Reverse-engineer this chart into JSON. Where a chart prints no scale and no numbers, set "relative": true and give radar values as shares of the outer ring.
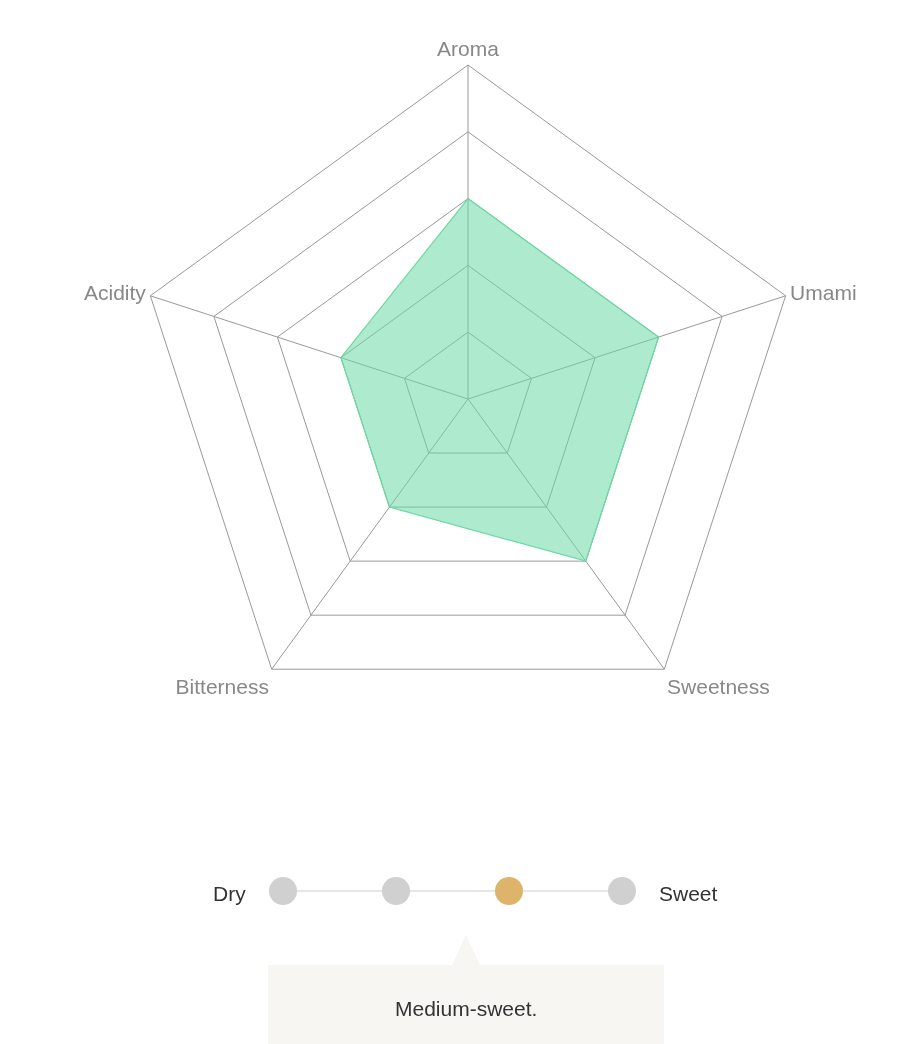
{
  "chart_data": [
    {
      "type": "radar",
      "relative": true,
      "grid": true,
      "categories": [
        "Aroma",
        "Umami",
        "Sweetness",
        "Bitterness",
        "Acidity"
      ],
      "series": [
        {
          "color": "#6ad9a6",
          "values": [
            0.6,
            0.6,
            0.6,
            0.4,
            0.4
          ]
        }
      ]
    },
    {
      "type": "other",
      "annotations": [
        "Dry",
        "Sweet",
        "Medium-sweet."
      ],
      "colors": [
        "#d0d0d0",
        "#d0d0d0",
        "#ddb46a",
        "#d0d0d0"
      ]
    }
  ]
}
